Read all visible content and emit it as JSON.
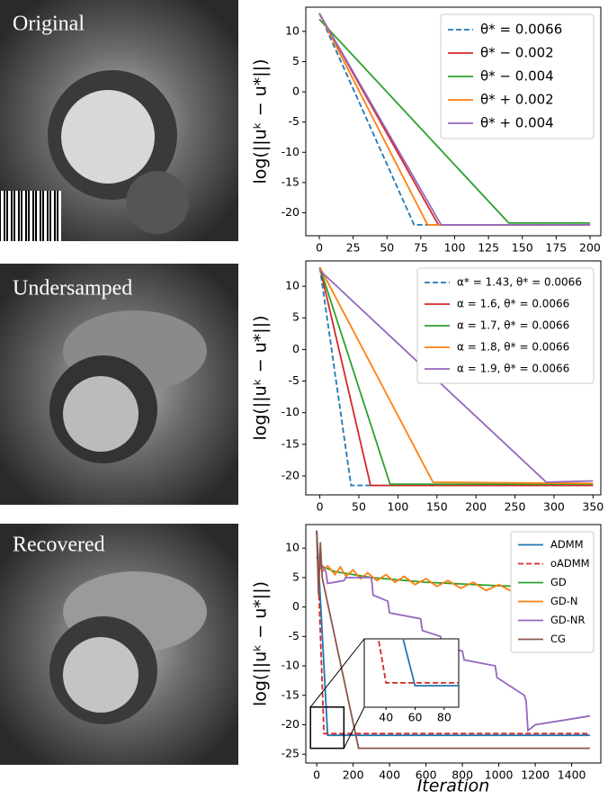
{
  "images": [
    {
      "label": "Original"
    },
    {
      "label": "Undersamped"
    },
    {
      "label": "Recovered"
    }
  ],
  "chart_data": [
    {
      "type": "line",
      "ylabel": "log(||uᵏ − u*||)",
      "xlim": [
        -10,
        208
      ],
      "ylim": [
        -23.8,
        14
      ],
      "xticks": [
        0,
        25,
        50,
        75,
        100,
        125,
        150,
        175,
        200
      ],
      "yticks": [
        -20,
        -15,
        -10,
        -5,
        0,
        5,
        10
      ],
      "legend": "upper right",
      "series": [
        {
          "name": "θ* = 0.0066",
          "color": "#1f77b4",
          "linestyle": "dashed",
          "x": [
            0,
            70,
            200
          ],
          "values": [
            13,
            -22,
            -22
          ]
        },
        {
          "name": "θ* − 0.002",
          "color": "#d62728",
          "linestyle": "solid",
          "x": [
            0,
            88,
            200
          ],
          "values": [
            13,
            -22,
            -22
          ]
        },
        {
          "name": "θ* − 0.004",
          "color": "#2ca02c",
          "linestyle": "solid",
          "x": [
            0,
            140,
            200
          ],
          "values": [
            12,
            -21.7,
            -21.7
          ]
        },
        {
          "name": "θ* + 0.002",
          "color": "#ff7f0e",
          "linestyle": "solid",
          "x": [
            0,
            80,
            200
          ],
          "values": [
            13,
            -22,
            -22
          ]
        },
        {
          "name": "θ* + 0.004",
          "color": "#9467bd",
          "linestyle": "solid",
          "x": [
            0,
            90,
            200
          ],
          "values": [
            13,
            -22,
            -22
          ]
        }
      ]
    },
    {
      "type": "line",
      "ylabel": "log(||uᵏ − u*||)",
      "xlim": [
        -18,
        360
      ],
      "ylim": [
        -23,
        14
      ],
      "xticks": [
        0,
        50,
        100,
        150,
        200,
        250,
        300,
        350
      ],
      "yticks": [
        -20,
        -15,
        -10,
        -5,
        0,
        5,
        10
      ],
      "legend": "upper right",
      "series": [
        {
          "name": "α* = 1.43, θ* = 0.0066",
          "color": "#1f77b4",
          "linestyle": "dashed",
          "x": [
            0,
            40,
            350
          ],
          "values": [
            13,
            -21.5,
            -21.5
          ]
        },
        {
          "name": "α = 1.6, θ* = 0.0066",
          "color": "#d62728",
          "linestyle": "solid",
          "x": [
            0,
            65,
            350
          ],
          "values": [
            13,
            -21.5,
            -21.5
          ]
        },
        {
          "name": "α = 1.7, θ* = 0.0066",
          "color": "#2ca02c",
          "linestyle": "solid",
          "x": [
            0,
            90,
            350
          ],
          "values": [
            13,
            -21.3,
            -21.3
          ]
        },
        {
          "name": "α = 1.8, θ* = 0.0066",
          "color": "#ff7f0e",
          "linestyle": "solid",
          "x": [
            0,
            145,
            350
          ],
          "values": [
            13,
            -21,
            -21.2
          ]
        },
        {
          "name": "α = 1.9, θ* = 0.0066",
          "color": "#9467bd",
          "linestyle": "solid",
          "x": [
            0,
            290,
            350
          ],
          "values": [
            12.5,
            -21,
            -20.8
          ]
        }
      ]
    },
    {
      "type": "line",
      "ylabel": "log(||uᵏ − u*||)",
      "xlabel": "Iteration",
      "xlim": [
        -60,
        1560
      ],
      "ylim": [
        -26.5,
        14
      ],
      "xticks": [
        0,
        200,
        400,
        600,
        800,
        1000,
        1200,
        1400
      ],
      "yticks": [
        -25,
        -20,
        -15,
        -10,
        -5,
        0,
        5,
        10
      ],
      "legend": "upper right",
      "inset": {
        "xlim": [
          25,
          90
        ],
        "ylim": [
          -24,
          -17
        ],
        "xticks": [
          40,
          60,
          80
        ]
      },
      "series": [
        {
          "name": "ADMM",
          "color": "#1f77b4",
          "linestyle": "solid",
          "x": [
            0,
            60,
            1500
          ],
          "values": [
            13,
            -21.8,
            -21.8
          ]
        },
        {
          "name": "oADMM",
          "color": "#d62728",
          "linestyle": "dashed",
          "x": [
            0,
            40,
            1500
          ],
          "values": [
            13,
            -21.5,
            -21.5
          ]
        },
        {
          "name": "GD",
          "color": "#2ca02c",
          "linestyle": "solid",
          "x": [
            0,
            20,
            100,
            300,
            600,
            1000,
            1500
          ],
          "values": [
            8.5,
            7,
            6,
            5,
            4.2,
            3.6,
            3.2
          ]
        },
        {
          "name": "GD-N",
          "color": "#ff7f0e",
          "linestyle": "solid",
          "x": [
            0,
            30,
            60,
            100,
            130,
            160,
            200,
            240,
            280,
            330,
            380,
            430,
            480,
            540,
            600,
            660,
            720,
            790,
            860,
            930,
            1000,
            1080,
            1160,
            1240,
            1320,
            1410,
            1500
          ],
          "values": [
            8.5,
            6,
            7,
            5.5,
            6.8,
            5.2,
            6.3,
            4.8,
            5.8,
            4.5,
            5.5,
            4.2,
            5.2,
            3.8,
            4.8,
            3.5,
            4.5,
            3.2,
            4.2,
            2.8,
            3.8,
            2.5,
            3.5,
            2.2,
            3.2,
            2,
            1.5
          ]
        },
        {
          "name": "GD-NR",
          "color": "#9467bd",
          "linestyle": "solid",
          "x": [
            0,
            50,
            60,
            150,
            160,
            300,
            310,
            390,
            400,
            570,
            580,
            680,
            690,
            800,
            810,
            980,
            990,
            1140,
            1150,
            1160,
            1200,
            1500
          ],
          "values": [
            8.5,
            6,
            4,
            4.5,
            5,
            5,
            2,
            1,
            -1,
            -2,
            -4,
            -5,
            -6.5,
            -7.5,
            -9,
            -10,
            -12,
            -15,
            -16,
            -21,
            -20,
            -18.5
          ]
        },
        {
          "name": "CG",
          "color": "#8c564b",
          "linestyle": "solid",
          "x": [
            0,
            10,
            20,
            30,
            230,
            1500
          ],
          "values": [
            13,
            2,
            11,
            5,
            -24,
            -24
          ]
        }
      ]
    }
  ]
}
